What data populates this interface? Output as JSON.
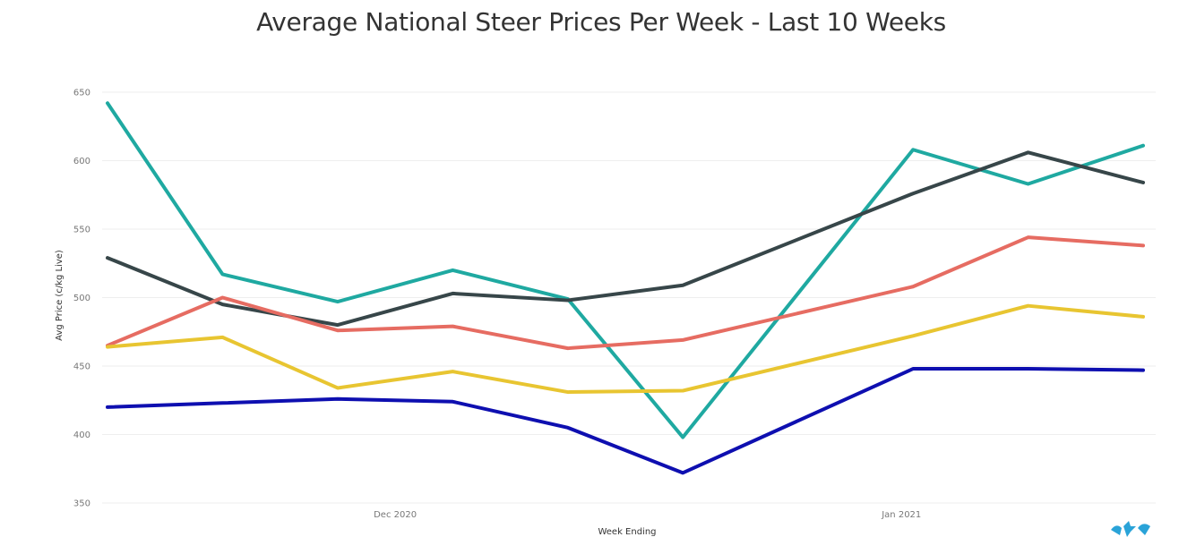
{
  "title": "Average National Steer Prices Per Week - Last 10 Weeks",
  "chart_data": {
    "type": "line",
    "title": "Average National Steer Prices Per Week - Last 10 Weeks",
    "xlabel": "Week Ending",
    "ylabel": "Avg Price (c/kg Live)",
    "x": [
      1,
      2,
      3,
      4,
      5,
      6,
      7,
      8,
      9,
      10
    ],
    "xticks": [
      {
        "at": 3.5,
        "label": "Dec 2020"
      },
      {
        "at": 7.9,
        "label": "Jan 2021"
      }
    ],
    "ylim": [
      350,
      650
    ],
    "yticks": [
      350,
      400,
      450,
      500,
      550,
      600,
      650
    ],
    "grid": true,
    "series": [
      {
        "color": "#1fa9a1",
        "values": [
          642,
          517,
          497,
          520,
          499,
          398,
          null,
          608,
          583,
          611
        ]
      },
      {
        "color": "#374649",
        "values": [
          529,
          495,
          480,
          503,
          498,
          509,
          null,
          576,
          606,
          584
        ]
      },
      {
        "color": "#e66c62",
        "values": [
          465,
          500,
          476,
          479,
          463,
          469,
          null,
          508,
          544,
          538
        ]
      },
      {
        "color": "#e8c531",
        "values": [
          464,
          471,
          434,
          446,
          431,
          432,
          null,
          472,
          494,
          486
        ]
      },
      {
        "color": "#0e0fb0",
        "values": [
          420,
          423,
          426,
          424,
          405,
          372,
          null,
          448,
          448,
          447
        ]
      }
    ]
  }
}
